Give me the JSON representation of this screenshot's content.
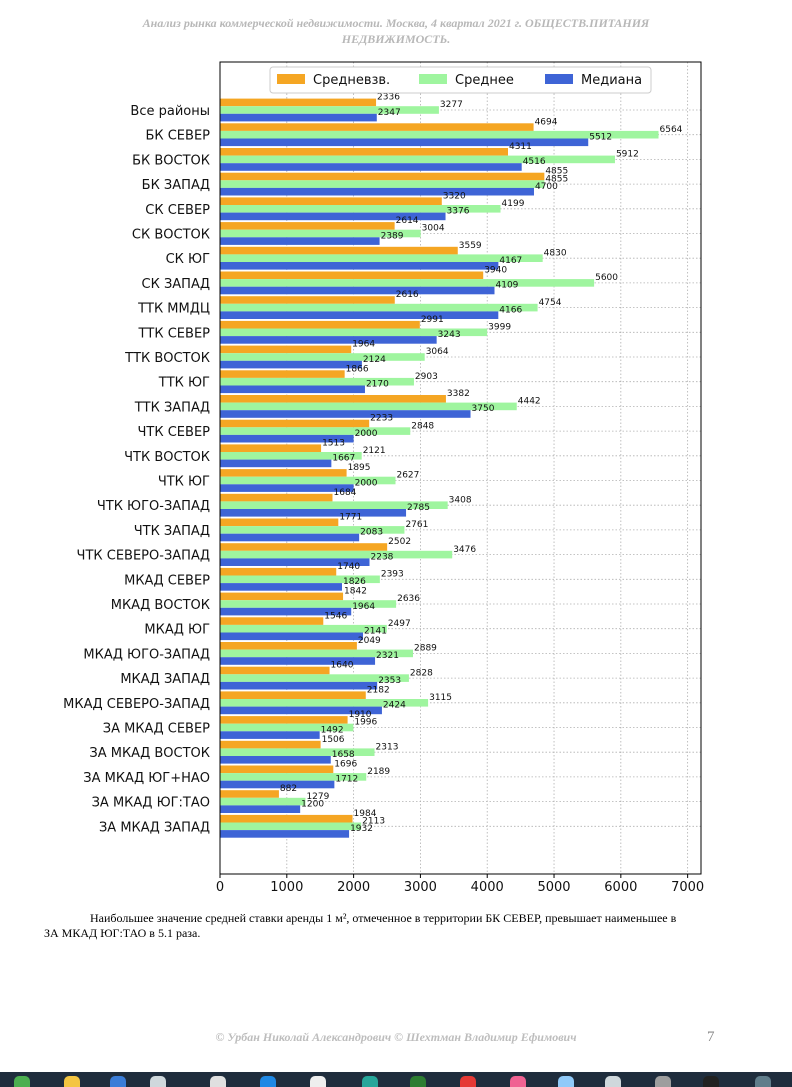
{
  "header": {
    "line1": "Анализ рынка коммерческой недвижимости.  Москва, 4 квартал 2021 г.   ОБЩЕСТВ.ПИТАНИЯ",
    "line2": "НЕДВИЖИМОСТЬ."
  },
  "chart_data": {
    "type": "bar",
    "orientation": "horizontal",
    "categories": [
      "Все районы",
      "БК СЕВЕР",
      "БК ВОСТОК",
      "БК ЗАПАД",
      "СК СЕВЕР",
      "СК ВОСТОК",
      "СК ЮГ",
      "СК ЗАПАД",
      "ТТК ММДЦ",
      "ТТК СЕВЕР",
      "ТТК ВОСТОК",
      "ТТК ЮГ",
      "ТТК ЗАПАД",
      "ЧТК СЕВЕР",
      "ЧТК ВОСТОК",
      "ЧТК ЮГ",
      "ЧТК ЮГО-ЗАПАД",
      "ЧТК ЗАПАД",
      "ЧТК СЕВЕРО-ЗАПАД",
      "МКАД СЕВЕР",
      "МКАД ВОСТОК",
      "МКАД ЮГ",
      "МКАД ЮГО-ЗАПАД",
      "МКАД ЗАПАД",
      "МКАД СЕВЕРО-ЗАПАД",
      "ЗА МКАД СЕВЕР",
      "ЗА МКАД ВОСТОК",
      "ЗА МКАД ЮГ+НАО",
      "ЗА МКАД ЮГ:ТАО",
      "ЗА МКАД ЗАПАД"
    ],
    "series": [
      {
        "name": "Средневзв.",
        "color": "#f5a623",
        "values": [
          2336,
          4694,
          4311,
          4855,
          3320,
          2614,
          3559,
          3940,
          2616,
          2991,
          1964,
          1866,
          3382,
          2233,
          1513,
          1895,
          1684,
          1771,
          2502,
          1740,
          1842,
          1546,
          2049,
          1640,
          2182,
          1910,
          1506,
          1696,
          882,
          1984
        ]
      },
      {
        "name": "Среднее",
        "color": "#9ff59f",
        "values": [
          3277,
          6564,
          5912,
          4855,
          4199,
          3004,
          4830,
          5600,
          4754,
          3999,
          3064,
          2903,
          4442,
          2848,
          2121,
          2627,
          3408,
          2761,
          3476,
          2393,
          2636,
          2497,
          2889,
          2828,
          3115,
          1996,
          2313,
          2189,
          1279,
          2113
        ]
      },
      {
        "name": "Медиана",
        "color": "#3e64d6",
        "values": [
          2347,
          5512,
          4516,
          4700,
          3376,
          2389,
          4167,
          4109,
          4166,
          3243,
          2124,
          2170,
          3750,
          2000,
          1667,
          2000,
          2785,
          2083,
          2238,
          1826,
          1964,
          2141,
          2321,
          2353,
          2424,
          1492,
          1658,
          1712,
          1200,
          1932
        ]
      }
    ],
    "xlim": [
      0,
      7200
    ],
    "xticks": [
      0,
      1000,
      2000,
      3000,
      4000,
      5000,
      6000,
      7000
    ],
    "grid": true,
    "legend_position": "top"
  },
  "text": {
    "paragraph": "Наибольшее значение средней ставки аренды 1 м², отмеченное в территории БК СЕВЕР, превышает наименьшее в ЗА МКАД ЮГ:ТАО в 5.1 раза."
  },
  "footer": {
    "authors": "© Урбан Николай Александрович  © Шехтман Владимир Ефимович",
    "page_number": "7"
  }
}
